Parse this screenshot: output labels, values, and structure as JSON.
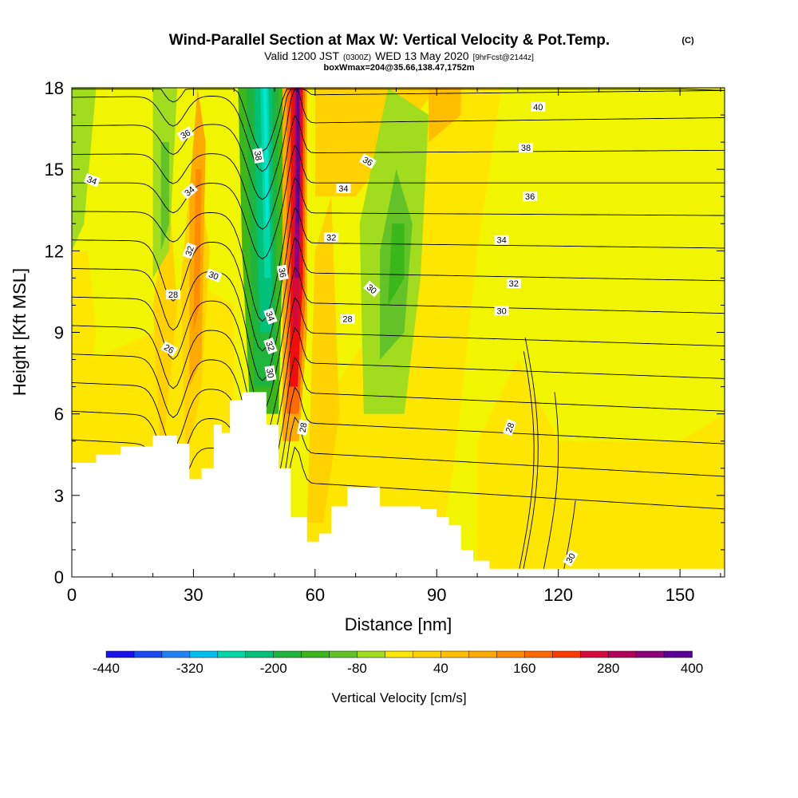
{
  "title": {
    "main": "Wind-Parallel Section at Max W: Vertical Velocity & Pot.Temp.",
    "copyright": "(C)",
    "valid_prefix": "Valid 1200 JST",
    "valid_utc": "(0300Z)",
    "valid_date": "WED 13 May 2020",
    "forecast": "[9hrFcst@2144z]",
    "box_info": "boxWmax=204@35.66,138.47,1752m"
  },
  "chart_data": {
    "type": "heatmap",
    "xlabel": "Distance [nm]",
    "ylabel": "Height [Kft MSL]",
    "xlim": [
      0,
      161
    ],
    "ylim": [
      0,
      18
    ],
    "x_ticks": [
      0,
      30,
      60,
      90,
      120,
      150
    ],
    "y_ticks": [
      0,
      3,
      6,
      9,
      12,
      15,
      18
    ],
    "grid": false,
    "colorbar": {
      "label": "Vertical Velocity [cm/s]",
      "placement": "bottom",
      "min": -440,
      "max": 400,
      "step": 40,
      "tick_labels": [
        "-440",
        "-320",
        "-200",
        "-80",
        "40",
        "160",
        "280",
        "400"
      ],
      "colors": [
        "#1a12ea",
        "#1a4bf5",
        "#2082f5",
        "#00bff2",
        "#00e6d8",
        "#00d7a7",
        "#00c07a",
        "#1fb43b",
        "#3bb71c",
        "#62c228",
        "#a2dc1e",
        "#eff600",
        "#ffe600",
        "#ffd200",
        "#ffbf00",
        "#ffaa00",
        "#ff8c00",
        "#ff6a00",
        "#ff3c00",
        "#f00d0d",
        "#d30a3c",
        "#b0005c",
        "#8c007a",
        "#5a0096"
      ]
    },
    "terrain_profile": {
      "x": [
        0,
        6,
        6,
        12,
        12,
        20,
        20,
        26,
        26,
        29,
        29,
        32,
        32,
        35,
        35,
        37,
        37,
        39,
        39,
        42,
        42,
        48,
        48,
        51,
        51,
        54,
        54,
        58,
        58,
        61,
        61,
        64,
        64,
        68,
        68,
        76,
        76,
        86,
        86,
        90,
        90,
        93,
        93,
        96,
        96,
        99,
        99,
        103,
        103,
        161
      ],
      "height": [
        4.2,
        4.2,
        4.5,
        4.5,
        4.8,
        4.8,
        5.2,
        5.2,
        4.9,
        4.9,
        3.6,
        3.6,
        4.0,
        4.0,
        5.6,
        5.6,
        5.3,
        5.3,
        6.5,
        6.5,
        6.8,
        6.8,
        5.6,
        5.6,
        4.0,
        4.0,
        2.2,
        2.2,
        1.3,
        1.3,
        1.6,
        1.6,
        2.6,
        2.6,
        3.3,
        3.3,
        2.6,
        2.6,
        2.5,
        2.5,
        2.2,
        2.2,
        1.9,
        1.9,
        1.0,
        1.0,
        0.6,
        0.6,
        0.3,
        0.3
      ]
    },
    "vertical_velocity_features": [
      {
        "name": "strong updraft core",
        "x": [
          54,
          57
        ],
        "z": [
          5,
          18
        ],
        "w_max": 400
      },
      {
        "name": "downdraft band",
        "x": [
          41,
          50
        ],
        "z": [
          6,
          18
        ],
        "w_min": -320
      },
      {
        "name": "weak downdraft",
        "x": [
          72,
          84
        ],
        "z": [
          6,
          17
        ],
        "w_min": -120
      },
      {
        "name": "weak downdraft",
        "x": [
          22,
          26
        ],
        "z": [
          11,
          18
        ],
        "w_min": -80
      },
      {
        "name": "weak updraft",
        "x": [
          29,
          33
        ],
        "z": [
          7,
          17
        ],
        "w_max": 120
      }
    ],
    "contour_labels": [
      "40",
      "38",
      "36",
      "34",
      "32",
      "30",
      "28",
      "36",
      "34",
      "32",
      "30",
      "28",
      "38",
      "36",
      "34",
      "32",
      "30",
      "28",
      "36",
      "34",
      "32",
      "30",
      "28",
      "26",
      "34",
      "30",
      "28",
      "28",
      "26"
    ],
    "contour_levels": [
      26,
      27,
      28,
      29,
      30,
      31,
      32,
      33,
      34,
      35,
      36,
      37,
      38,
      39,
      40
    ]
  }
}
